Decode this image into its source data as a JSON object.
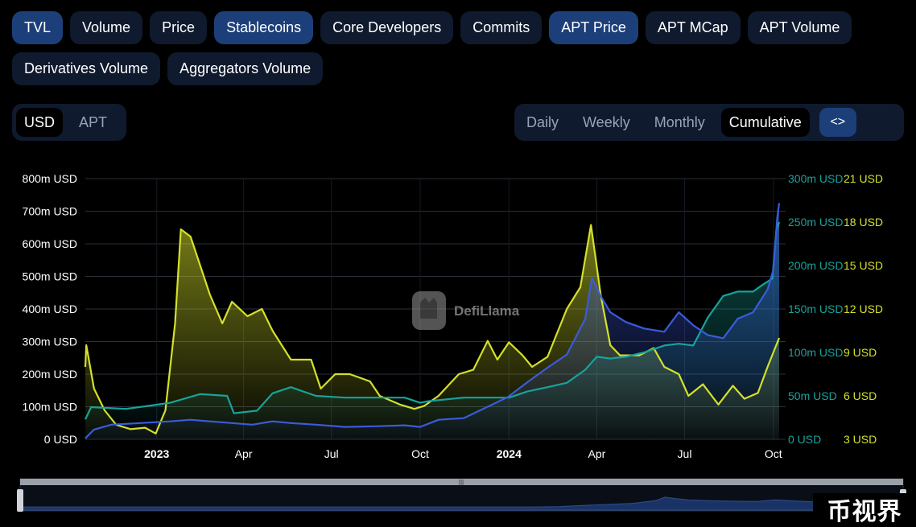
{
  "metric_tabs": [
    {
      "label": "TVL",
      "active": true
    },
    {
      "label": "Volume",
      "active": false
    },
    {
      "label": "Price",
      "active": false
    },
    {
      "label": "Stablecoins",
      "active": true
    },
    {
      "label": "Core Developers",
      "active": false
    },
    {
      "label": "Commits",
      "active": false
    },
    {
      "label": "APT Price",
      "active": true
    },
    {
      "label": "APT MCap",
      "active": false
    },
    {
      "label": "APT Volume",
      "active": false
    },
    {
      "label": "Derivatives Volume",
      "active": false
    },
    {
      "label": "Aggregators Volume",
      "active": false
    }
  ],
  "denomination": {
    "usd": "USD",
    "apt": "APT",
    "selected": "USD"
  },
  "interval": {
    "daily": "Daily",
    "weekly": "Weekly",
    "monthly": "Monthly",
    "cumulative": "Cumulative",
    "selected": "Cumulative"
  },
  "embed_icon": "code-brackets-icon",
  "logo_text": "DefiLlama",
  "corner_badge": "币视界",
  "colors": {
    "tvl": "#3b5bdb",
    "stablecoins": "#16a39b",
    "apt_price": "#d4e02a",
    "background": "#000000",
    "grid": "#2a2f3a"
  },
  "chart_data": {
    "type": "line",
    "title": "",
    "x_start": "2022-10-19",
    "x_end": "2024-10-07",
    "x_ticks": [
      {
        "date": "2023-01-01",
        "label": "2023",
        "bold": true
      },
      {
        "date": "2023-04-01",
        "label": "Apr",
        "bold": false
      },
      {
        "date": "2023-07-01",
        "label": "Jul",
        "bold": false
      },
      {
        "date": "2023-10-01",
        "label": "Oct",
        "bold": false
      },
      {
        "date": "2024-01-01",
        "label": "2024",
        "bold": true
      },
      {
        "date": "2024-04-01",
        "label": "Apr",
        "bold": false
      },
      {
        "date": "2024-07-01",
        "label": "Jul",
        "bold": false
      },
      {
        "date": "2024-10-01",
        "label": "Oct",
        "bold": false
      }
    ],
    "axes": {
      "left": {
        "min": 0,
        "max": 800,
        "ticks": [
          0,
          100,
          200,
          300,
          400,
          500,
          600,
          700,
          800
        ],
        "labels": [
          "0 USD",
          "100m USD",
          "200m USD",
          "300m USD",
          "400m USD",
          "500m USD",
          "600m USD",
          "700m USD",
          "800m USD"
        ]
      },
      "stable": {
        "min": 0,
        "max": 300,
        "ticks": [
          0,
          50,
          100,
          150,
          200,
          250,
          300
        ],
        "labels": [
          "0 USD",
          "50m USD",
          "100m USD",
          "150m USD",
          "200m USD",
          "250m USD",
          "300m USD"
        ]
      },
      "price": {
        "min": 3,
        "max": 21,
        "ticks": [
          3,
          6,
          9,
          12,
          15,
          18,
          21
        ],
        "labels": [
          "3 USD",
          "6 USD",
          "9 USD",
          "12 USD",
          "15 USD",
          "18 USD",
          "21 USD"
        ]
      }
    },
    "series": [
      {
        "name": "TVL",
        "axis": "left",
        "unit": "m USD",
        "points": [
          [
            "2022-10-19",
            3
          ],
          [
            "2022-10-28",
            30
          ],
          [
            "2022-11-15",
            45
          ],
          [
            "2022-12-15",
            50
          ],
          [
            "2023-01-15",
            55
          ],
          [
            "2023-02-05",
            60
          ],
          [
            "2023-02-25",
            55
          ],
          [
            "2023-03-20",
            50
          ],
          [
            "2023-04-10",
            45
          ],
          [
            "2023-05-01",
            55
          ],
          [
            "2023-05-20",
            50
          ],
          [
            "2023-06-15",
            45
          ],
          [
            "2023-07-15",
            38
          ],
          [
            "2023-08-15",
            40
          ],
          [
            "2023-09-15",
            43
          ],
          [
            "2023-10-01",
            38
          ],
          [
            "2023-10-20",
            60
          ],
          [
            "2023-11-15",
            65
          ],
          [
            "2023-12-10",
            100
          ],
          [
            "2023-12-31",
            130
          ],
          [
            "2024-01-20",
            175
          ],
          [
            "2024-02-10",
            220
          ],
          [
            "2024-03-01",
            260
          ],
          [
            "2024-03-20",
            370
          ],
          [
            "2024-03-27",
            495
          ],
          [
            "2024-04-05",
            440
          ],
          [
            "2024-04-15",
            390
          ],
          [
            "2024-05-01",
            360
          ],
          [
            "2024-05-20",
            340
          ],
          [
            "2024-06-10",
            330
          ],
          [
            "2024-06-25",
            390
          ],
          [
            "2024-07-10",
            350
          ],
          [
            "2024-07-25",
            320
          ],
          [
            "2024-08-10",
            310
          ],
          [
            "2024-08-25",
            370
          ],
          [
            "2024-09-10",
            390
          ],
          [
            "2024-09-25",
            460
          ],
          [
            "2024-10-01",
            520
          ],
          [
            "2024-10-05",
            680
          ],
          [
            "2024-10-07",
            725
          ]
        ]
      },
      {
        "name": "Stablecoins",
        "axis": "stable",
        "unit": "m USD",
        "points": [
          [
            "2022-10-19",
            23
          ],
          [
            "2022-10-25",
            37
          ],
          [
            "2022-11-30",
            35
          ],
          [
            "2022-12-20",
            38
          ],
          [
            "2023-01-15",
            42
          ],
          [
            "2023-02-15",
            52
          ],
          [
            "2023-03-15",
            50
          ],
          [
            "2023-03-22",
            30
          ],
          [
            "2023-04-15",
            33
          ],
          [
            "2023-05-01",
            53
          ],
          [
            "2023-05-20",
            60
          ],
          [
            "2023-06-15",
            50
          ],
          [
            "2023-07-15",
            48
          ],
          [
            "2023-08-15",
            48
          ],
          [
            "2023-09-15",
            48
          ],
          [
            "2023-10-01",
            42
          ],
          [
            "2023-10-10",
            44
          ],
          [
            "2023-11-15",
            48
          ],
          [
            "2023-12-15",
            48
          ],
          [
            "2024-01-01",
            48
          ],
          [
            "2024-01-20",
            55
          ],
          [
            "2024-02-10",
            60
          ],
          [
            "2024-03-01",
            65
          ],
          [
            "2024-03-20",
            80
          ],
          [
            "2024-04-01",
            95
          ],
          [
            "2024-04-15",
            93
          ],
          [
            "2024-05-01",
            95
          ],
          [
            "2024-05-20",
            100
          ],
          [
            "2024-06-10",
            108
          ],
          [
            "2024-06-25",
            110
          ],
          [
            "2024-07-10",
            108
          ],
          [
            "2024-07-25",
            140
          ],
          [
            "2024-08-10",
            165
          ],
          [
            "2024-08-25",
            170
          ],
          [
            "2024-09-10",
            170
          ],
          [
            "2024-09-20",
            178
          ],
          [
            "2024-09-30",
            185
          ],
          [
            "2024-10-04",
            240
          ],
          [
            "2024-10-07",
            250
          ]
        ]
      },
      {
        "name": "APT Price",
        "axis": "price",
        "unit": "USD",
        "points": [
          [
            "2022-10-19",
            8.0
          ],
          [
            "2022-10-20",
            9.5
          ],
          [
            "2022-10-28",
            6.5
          ],
          [
            "2022-11-08",
            5.0
          ],
          [
            "2022-11-20",
            4.0
          ],
          [
            "2022-12-05",
            3.7
          ],
          [
            "2022-12-20",
            3.8
          ],
          [
            "2022-12-31",
            3.4
          ],
          [
            "2023-01-10",
            5.0
          ],
          [
            "2023-01-20",
            11.0
          ],
          [
            "2023-01-26",
            17.5
          ],
          [
            "2023-02-05",
            17.0
          ],
          [
            "2023-02-15",
            15.0
          ],
          [
            "2023-02-25",
            13.0
          ],
          [
            "2023-03-10",
            11.0
          ],
          [
            "2023-03-20",
            12.5
          ],
          [
            "2023-04-05",
            11.5
          ],
          [
            "2023-04-20",
            12.0
          ],
          [
            "2023-05-01",
            10.5
          ],
          [
            "2023-05-20",
            8.5
          ],
          [
            "2023-06-10",
            8.5
          ],
          [
            "2023-06-20",
            6.5
          ],
          [
            "2023-07-05",
            7.5
          ],
          [
            "2023-07-20",
            7.5
          ],
          [
            "2023-08-10",
            7.0
          ],
          [
            "2023-08-20",
            6.0
          ],
          [
            "2023-09-10",
            5.4
          ],
          [
            "2023-09-25",
            5.1
          ],
          [
            "2023-10-05",
            5.3
          ],
          [
            "2023-10-20",
            6.0
          ],
          [
            "2023-11-10",
            7.5
          ],
          [
            "2023-11-25",
            7.8
          ],
          [
            "2023-12-10",
            9.8
          ],
          [
            "2023-12-20",
            8.5
          ],
          [
            "2024-01-01",
            9.7
          ],
          [
            "2024-01-15",
            8.8
          ],
          [
            "2024-01-25",
            8.0
          ],
          [
            "2024-02-10",
            8.7
          ],
          [
            "2024-03-01",
            12.0
          ],
          [
            "2024-03-15",
            13.5
          ],
          [
            "2024-03-26",
            17.8
          ],
          [
            "2024-04-05",
            13.0
          ],
          [
            "2024-04-15",
            9.5
          ],
          [
            "2024-04-25",
            8.8
          ],
          [
            "2024-05-15",
            8.8
          ],
          [
            "2024-05-30",
            9.3
          ],
          [
            "2024-06-10",
            8.0
          ],
          [
            "2024-06-25",
            7.5
          ],
          [
            "2024-07-05",
            6.0
          ],
          [
            "2024-07-20",
            6.8
          ],
          [
            "2024-08-05",
            5.4
          ],
          [
            "2024-08-20",
            6.7
          ],
          [
            "2024-09-01",
            5.8
          ],
          [
            "2024-09-15",
            6.2
          ],
          [
            "2024-09-25",
            8.0
          ],
          [
            "2024-10-01",
            9.0
          ],
          [
            "2024-10-07",
            10.0
          ]
        ]
      }
    ]
  }
}
